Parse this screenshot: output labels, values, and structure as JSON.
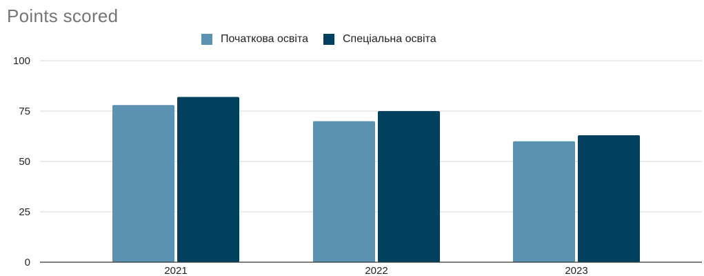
{
  "chart_data": {
    "type": "bar",
    "title": "Points scored",
    "xlabel": "",
    "ylabel": "",
    "categories": [
      "2021",
      "2022",
      "2023"
    ],
    "series": [
      {
        "name": "Початкова освіта",
        "color": "#5b91b1",
        "values": [
          78,
          70,
          60
        ]
      },
      {
        "name": "Спеціальна освіта",
        "color": "#02405f",
        "values": [
          82,
          75,
          63
        ]
      }
    ],
    "ylim": [
      0,
      100
    ],
    "yticks": [
      "0",
      "25",
      "50",
      "75",
      "100"
    ],
    "grid": true,
    "legend_position": "top"
  }
}
